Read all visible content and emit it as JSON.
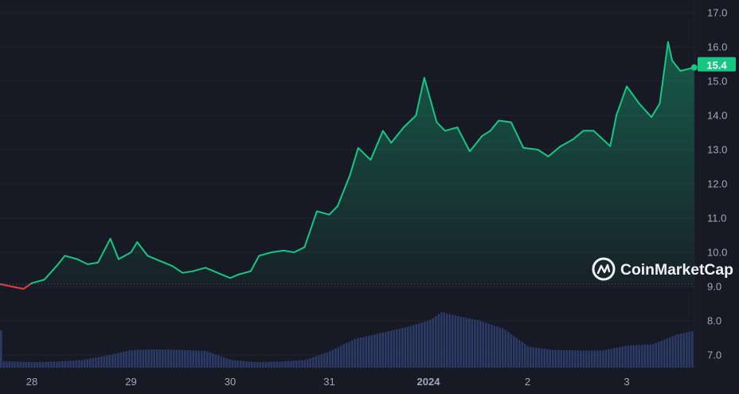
{
  "chart_data": {
    "type": "line",
    "title": "",
    "xlabel": "",
    "ylabel": "",
    "ylim": [
      6.7,
      17.2
    ],
    "y_ticks": [
      "17.0",
      "16.0",
      "15.0",
      "14.0",
      "13.0",
      "12.0",
      "11.0",
      "10.0",
      "9.0",
      "8.0",
      "7.0"
    ],
    "x_ticks": [
      {
        "label": "28",
        "date": "2023-12-28T00:00",
        "bold": false
      },
      {
        "label": "29",
        "date": "2023-12-29T00:00",
        "bold": false
      },
      {
        "label": "30",
        "date": "2023-12-30T00:00",
        "bold": false
      },
      {
        "label": "31",
        "date": "2023-12-31T00:00",
        "bold": false
      },
      {
        "label": "2024",
        "date": "2024-01-01T00:00",
        "bold": true
      },
      {
        "label": "2",
        "date": "2024-01-02T00:00",
        "bold": false
      },
      {
        "label": "3",
        "date": "2024-01-03T00:00",
        "bold": false
      }
    ],
    "grid": true,
    "baseline_price": 9.07,
    "current_price_label": "15.4",
    "colors": {
      "up": "#16c784",
      "down": "#ea3943",
      "volume": "#2b3a66",
      "background": "#171924",
      "badge": "#16c784"
    },
    "price_series": [
      [
        "2023-12-27T16:20",
        9.07
      ],
      [
        "2023-12-27T19:10",
        9.0
      ],
      [
        "2023-12-27T22:00",
        8.93
      ],
      [
        "2023-12-28T00:00",
        9.1
      ],
      [
        "2023-12-28T03:00",
        9.2
      ],
      [
        "2023-12-28T06:00",
        9.6
      ],
      [
        "2023-12-28T08:00",
        9.9
      ],
      [
        "2023-12-28T11:00",
        9.8
      ],
      [
        "2023-12-28T13:30",
        9.65
      ],
      [
        "2023-12-28T16:00",
        9.7
      ],
      [
        "2023-12-28T19:00",
        10.4
      ],
      [
        "2023-12-28T21:00",
        9.8
      ],
      [
        "2023-12-29T00:00",
        10.0
      ],
      [
        "2023-12-29T01:30",
        10.3
      ],
      [
        "2023-12-29T04:00",
        9.9
      ],
      [
        "2023-12-29T07:00",
        9.75
      ],
      [
        "2023-12-29T10:00",
        9.6
      ],
      [
        "2023-12-29T12:30",
        9.4
      ],
      [
        "2023-12-29T15:00",
        9.45
      ],
      [
        "2023-12-29T18:00",
        9.55
      ],
      [
        "2023-12-29T21:00",
        9.4
      ],
      [
        "2023-12-30T00:00",
        9.25
      ],
      [
        "2023-12-30T02:00",
        9.35
      ],
      [
        "2023-12-30T05:00",
        9.45
      ],
      [
        "2023-12-30T07:00",
        9.9
      ],
      [
        "2023-12-30T10:00",
        10.0
      ],
      [
        "2023-12-30T13:00",
        10.05
      ],
      [
        "2023-12-30T15:30",
        10.0
      ],
      [
        "2023-12-30T18:00",
        10.15
      ],
      [
        "2023-12-30T21:00",
        11.2
      ],
      [
        "2023-12-31T00:00",
        11.1
      ],
      [
        "2023-12-31T02:00",
        11.35
      ],
      [
        "2023-12-31T05:00",
        12.25
      ],
      [
        "2023-12-31T07:00",
        13.05
      ],
      [
        "2023-12-31T10:00",
        12.7
      ],
      [
        "2023-12-31T13:00",
        13.55
      ],
      [
        "2023-12-31T15:00",
        13.2
      ],
      [
        "2023-12-31T18:00",
        13.65
      ],
      [
        "2023-12-31T21:00",
        14.0
      ],
      [
        "2023-12-31T23:00",
        15.1
      ],
      [
        "2024-01-01T02:00",
        13.8
      ],
      [
        "2024-01-01T04:00",
        13.55
      ],
      [
        "2024-01-01T07:00",
        13.65
      ],
      [
        "2024-01-01T10:00",
        12.95
      ],
      [
        "2024-01-01T13:00",
        13.4
      ],
      [
        "2024-01-01T15:00",
        13.55
      ],
      [
        "2024-01-01T17:00",
        13.85
      ],
      [
        "2024-01-01T20:00",
        13.8
      ],
      [
        "2024-01-01T23:00",
        13.05
      ],
      [
        "2024-01-02T02:30",
        13.0
      ],
      [
        "2024-01-02T05:00",
        12.8
      ],
      [
        "2024-01-02T08:00",
        13.1
      ],
      [
        "2024-01-02T11:00",
        13.3
      ],
      [
        "2024-01-02T13:30",
        13.55
      ],
      [
        "2024-01-02T16:00",
        13.55
      ],
      [
        "2024-01-02T20:00",
        13.1
      ],
      [
        "2024-01-02T21:30",
        14.0
      ],
      [
        "2024-01-03T00:00",
        14.85
      ],
      [
        "2024-01-03T03:00",
        14.35
      ],
      [
        "2024-01-03T06:00",
        13.95
      ],
      [
        "2024-01-03T08:00",
        14.35
      ],
      [
        "2024-01-03T10:00",
        16.15
      ],
      [
        "2024-01-03T11:00",
        15.6
      ],
      [
        "2024-01-03T13:00",
        15.3
      ],
      [
        "2024-01-03T16:20",
        15.4
      ]
    ],
    "volume_series_relative_pct": [
      [
        "2023-12-27T16:20",
        12
      ],
      [
        "2023-12-28T00:00",
        10
      ],
      [
        "2023-12-28T06:00",
        11
      ],
      [
        "2023-12-28T12:00",
        14
      ],
      [
        "2023-12-28T18:00",
        22
      ],
      [
        "2023-12-29T00:00",
        32
      ],
      [
        "2023-12-29T06:00",
        33
      ],
      [
        "2023-12-29T12:00",
        32
      ],
      [
        "2023-12-29T18:00",
        30
      ],
      [
        "2023-12-30T00:00",
        14
      ],
      [
        "2023-12-30T06:00",
        10
      ],
      [
        "2023-12-30T12:00",
        11
      ],
      [
        "2023-12-30T18:00",
        14
      ],
      [
        "2023-12-31T00:00",
        30
      ],
      [
        "2023-12-31T06:00",
        52
      ],
      [
        "2023-12-31T12:00",
        62
      ],
      [
        "2023-12-31T18:00",
        72
      ],
      [
        "2024-01-01T00:00",
        85
      ],
      [
        "2024-01-01T03:00",
        100
      ],
      [
        "2024-01-01T06:00",
        94
      ],
      [
        "2024-01-01T12:00",
        85
      ],
      [
        "2024-01-01T18:00",
        70
      ],
      [
        "2024-01-02T00:00",
        38
      ],
      [
        "2024-01-02T06:00",
        32
      ],
      [
        "2024-01-02T12:00",
        31
      ],
      [
        "2024-01-02T18:00",
        31
      ],
      [
        "2024-01-03T00:00",
        40
      ],
      [
        "2024-01-03T06:00",
        42
      ],
      [
        "2024-01-03T12:00",
        60
      ],
      [
        "2024-01-03T16:20",
        67
      ]
    ]
  },
  "watermark": {
    "brand": "CoinMarketCap",
    "icon": "coinmarketcap-logo-icon"
  }
}
